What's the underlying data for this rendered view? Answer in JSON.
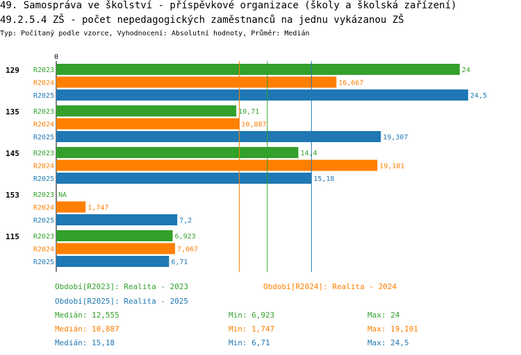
{
  "chart_data": {
    "type": "bar",
    "orientation": "horizontal",
    "title": "49. Samospráva ve školství - příspěvkové organizace (školy a školská zařízení)",
    "subtitle": "49.2.5.4 ZŠ - počet nepedagogických zaměstnanců na jednu vykázanou ZŠ",
    "type_line": "Typ: Počítaný podle vzorce, Vyhodnocení: Absolutní hodnoty, Průměr: Medián",
    "axis_zero_label": "0",
    "xlim": [
      0,
      27
    ],
    "categories": [
      "129",
      "135",
      "145",
      "153",
      "115"
    ],
    "series": [
      {
        "name": "R2023",
        "color": "#33a02c",
        "values": [
          24,
          10.71,
          14.4,
          null,
          6.923
        ],
        "labels": [
          "24",
          "10,71",
          "14,4",
          "NA",
          "6,923"
        ],
        "median": 12.555
      },
      {
        "name": "R2024",
        "color": "#ff7f00",
        "values": [
          16.667,
          10.887,
          19.101,
          1.747,
          7.067
        ],
        "labels": [
          "16,667",
          "10,887",
          "19,101",
          "1,747",
          "7,067"
        ],
        "median": 10.887
      },
      {
        "name": "R2025",
        "color": "#1f78b4",
        "values": [
          24.5,
          19.307,
          15.18,
          7.2,
          6.71
        ],
        "labels": [
          "24,5",
          "19,307",
          "15,18",
          "7,2",
          "6,71"
        ],
        "median": 15.18
      }
    ],
    "legend": [
      {
        "text": "Období[R2023]: Realita - 2023",
        "color": "#33a02c"
      },
      {
        "text": "Období[R2024]: Realita - 2024",
        "color": "#ff7f00"
      },
      {
        "text": "Období[R2025]: Realita - 2025",
        "color": "#1f78b4"
      }
    ],
    "stats": [
      {
        "median": "Medián: 12,555",
        "min": "Min: 6,923",
        "max": "Max: 24",
        "color": "#33a02c"
      },
      {
        "median": "Medián: 10,887",
        "min": "Min: 1,747",
        "max": "Max: 19,101",
        "color": "#ff7f00"
      },
      {
        "median": "Medián: 15,18",
        "min": "Min: 6,71",
        "max": "Max: 24,5",
        "color": "#1f78b4"
      }
    ]
  }
}
